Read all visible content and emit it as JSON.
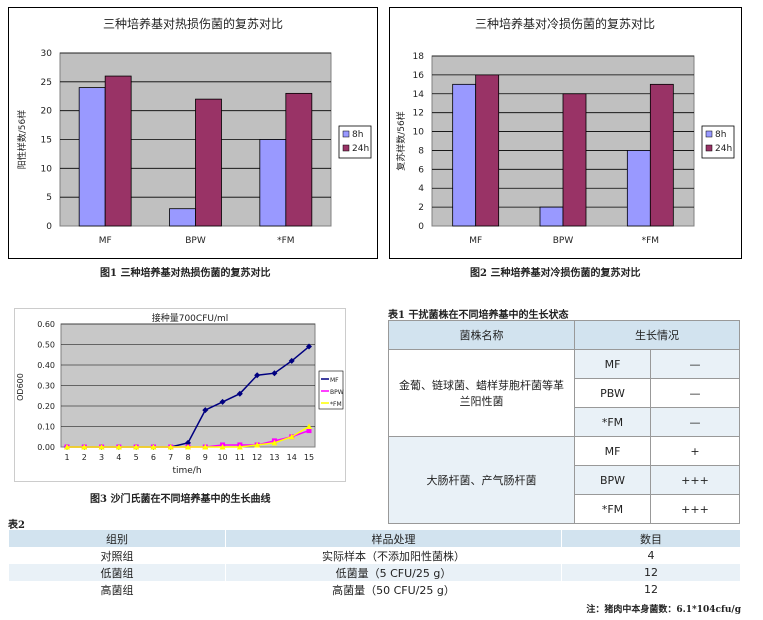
{
  "chart_data": [
    {
      "type": "bar",
      "title": "三种培养基对热损伤菌的复苏对比",
      "ylabel": "阳性样数/56样",
      "categories": [
        "MF",
        "BPW",
        "*FM"
      ],
      "series": [
        {
          "name": "8h",
          "values": [
            24,
            3,
            15
          ],
          "color": "#9999ff"
        },
        {
          "name": "24h",
          "values": [
            26,
            22,
            23
          ],
          "color": "#993366"
        }
      ],
      "ylim": [
        0,
        30
      ],
      "yticks": [
        0,
        5,
        10,
        15,
        20,
        25,
        30
      ],
      "grid": true,
      "legend": "right"
    },
    {
      "type": "bar",
      "title": "三种培养基对冷损伤菌的复苏对比",
      "ylabel": "复苏样数/56样",
      "categories": [
        "MF",
        "BPW",
        "*FM"
      ],
      "series": [
        {
          "name": "8h",
          "values": [
            15,
            2,
            8
          ],
          "color": "#9999ff"
        },
        {
          "name": "24h",
          "values": [
            16,
            14,
            15
          ],
          "color": "#993366"
        }
      ],
      "ylim": [
        0,
        18
      ],
      "yticks": [
        0,
        2,
        4,
        6,
        8,
        10,
        12,
        14,
        16,
        18
      ],
      "grid": true,
      "legend": "right"
    },
    {
      "type": "line",
      "title": "接种量700CFU/ml",
      "ylabel": "OD600",
      "xlabel": "time/h",
      "x": [
        1,
        2,
        3,
        4,
        5,
        6,
        7,
        8,
        9,
        10,
        11,
        12,
        13,
        14,
        15
      ],
      "series": [
        {
          "name": "MF",
          "color": "#000080",
          "values": [
            0,
            0,
            0,
            0,
            0,
            0,
            0,
            0.02,
            0.18,
            0.22,
            0.26,
            0.35,
            0.36,
            0.42,
            0.49
          ]
        },
        {
          "name": "BPW",
          "color": "#ff00ff",
          "values": [
            0,
            0,
            0,
            0,
            0,
            0,
            0,
            0,
            0,
            0.01,
            0.01,
            0.01,
            0.03,
            0.05,
            0.08
          ]
        },
        {
          "name": "*FM",
          "color": "#ffff00",
          "values": [
            0,
            0,
            0,
            0,
            0,
            0,
            0,
            0,
            0,
            0,
            0,
            0.01,
            0.02,
            0.05,
            0.1
          ]
        }
      ],
      "ylim": [
        0,
        0.6
      ],
      "yticks": [
        "0.00",
        "0.10",
        "0.20",
        "0.30",
        "0.40",
        "0.50",
        "0.60"
      ],
      "grid": true,
      "legend": "right"
    }
  ],
  "captions": {
    "fig1": "图1 三种培养基对热损伤菌的复苏对比",
    "fig2": "图2 三种培养基对冷损伤菌的复苏对比",
    "fig3": "图3 沙门氏菌在不同培养基中的生长曲线"
  },
  "table1": {
    "title": "表1 干扰菌株在不同培养基中的生长状态",
    "header": {
      "strain": "菌株名称",
      "growth": "生长情况"
    },
    "groups": [
      {
        "strain": "金葡、链球菌、蜡样芽胞杆菌等革兰阳性菌",
        "rows": [
          {
            "medium": "MF",
            "result": "—"
          },
          {
            "medium": "PBW",
            "result": "—"
          },
          {
            "medium": "*FM",
            "result": "—"
          }
        ]
      },
      {
        "strain": "大肠杆菌、产气肠杆菌",
        "rows": [
          {
            "medium": "MF",
            "result": "+"
          },
          {
            "medium": "BPW",
            "result": "+++"
          },
          {
            "medium": "*FM",
            "result": "+++"
          }
        ]
      }
    ]
  },
  "table2": {
    "title": "表2",
    "header": [
      "组别",
      "样品处理",
      "数目"
    ],
    "rows": [
      [
        "对照组",
        "实际样本（不添加阳性菌株）",
        "4"
      ],
      [
        "低菌组",
        "低菌量（5 CFU/25 g）",
        "12"
      ],
      [
        "高菌组",
        "高菌量（50 CFU/25 g）",
        "12"
      ]
    ]
  },
  "note": "注：猪肉中本身菌数：6.1*104cfu/g"
}
